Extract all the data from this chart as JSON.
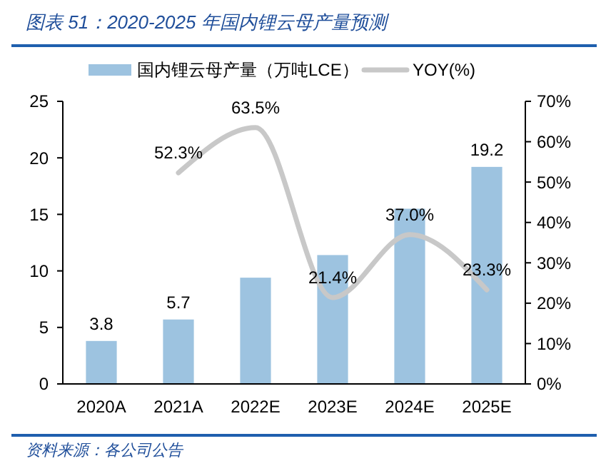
{
  "chart_data": {
    "type": "bar",
    "title": "图表 51：2020-2025 年国内锂云母产量预测",
    "categories": [
      "2020A",
      "2021A",
      "2022E",
      "2023E",
      "2024E",
      "2025E"
    ],
    "series": [
      {
        "name": "国内锂云母产量（万吨LCE）",
        "color": "#9dc3e0",
        "values": [
          3.8,
          5.7,
          9.4,
          11.4,
          15.5,
          19.2
        ],
        "value_labels": [
          "3.8",
          "5.7",
          null,
          null,
          null,
          "19.2"
        ]
      },
      {
        "name": "YOY(%)",
        "type": "line",
        "axis": "y2",
        "color": "#c8c8c8",
        "values": [
          null,
          52.3,
          63.5,
          21.4,
          37.0,
          23.3
        ],
        "value_labels": [
          null,
          "52.3%",
          "63.5%",
          "21.4%",
          "37.0%",
          "23.3%"
        ]
      }
    ],
    "ylim": [
      0,
      25
    ],
    "yticks": [
      0,
      5,
      10,
      15,
      20,
      25
    ],
    "y2lim": [
      0,
      70
    ],
    "y2ticks": [
      {
        "value": 0,
        "label": "0%"
      },
      {
        "value": 10,
        "label": "10%"
      },
      {
        "value": 20,
        "label": "20%"
      },
      {
        "value": 30,
        "label": "30%"
      },
      {
        "value": 40,
        "label": "40%"
      },
      {
        "value": 50,
        "label": "50%"
      },
      {
        "value": 60,
        "label": "60%"
      },
      {
        "value": 70,
        "label": "70%"
      }
    ],
    "legend": "top",
    "grid": false,
    "marker": "none",
    "line_style": "solid",
    "annotations": [
      "资料来源：各公司公告"
    ]
  }
}
